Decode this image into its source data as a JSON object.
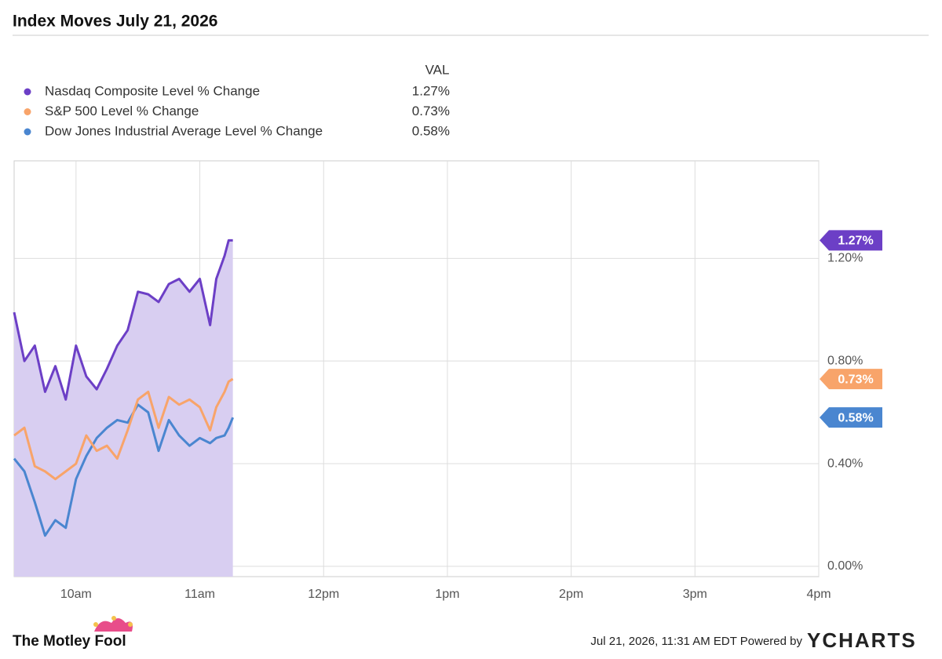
{
  "chart_data": {
    "type": "line",
    "title": "Index Moves July 21, 2026",
    "legend_header": "VAL",
    "x": [
      9.5,
      9.583,
      9.667,
      9.75,
      9.833,
      9.917,
      10,
      10.083,
      10.167,
      10.25,
      10.333,
      10.417,
      10.5,
      10.583,
      10.667,
      10.75,
      10.833,
      10.917,
      11,
      11.083,
      11.133,
      11.2,
      11.233,
      11.267
    ],
    "series": [
      {
        "name": "Nasdaq Composite Level % Change",
        "color": "#6c3fc6",
        "area_color": "#d8cef1",
        "values": [
          0.99,
          0.8,
          0.86,
          0.68,
          0.78,
          0.65,
          0.86,
          0.74,
          0.69,
          0.77,
          0.86,
          0.92,
          1.07,
          1.06,
          1.03,
          1.1,
          1.12,
          1.07,
          1.12,
          0.94,
          1.12,
          1.21,
          1.27,
          1.27
        ],
        "value_labels": [
          null,
          null,
          null,
          null,
          null,
          null,
          null,
          null,
          null,
          null,
          null,
          null,
          null,
          null,
          null,
          null,
          null,
          null,
          null,
          null,
          null,
          null,
          null,
          "1.27%"
        ]
      },
      {
        "name": "S&P 500 Level % Change",
        "color": "#f8a46a",
        "values": [
          0.51,
          0.54,
          0.39,
          0.37,
          0.34,
          0.37,
          0.4,
          0.51,
          0.45,
          0.47,
          0.42,
          0.53,
          0.65,
          0.68,
          0.54,
          0.66,
          0.63,
          0.65,
          0.62,
          0.53,
          0.62,
          0.68,
          0.72,
          0.73
        ],
        "value_labels": [
          null,
          null,
          null,
          null,
          null,
          null,
          null,
          null,
          null,
          null,
          null,
          null,
          null,
          null,
          null,
          null,
          null,
          null,
          null,
          null,
          null,
          null,
          null,
          "0.73%"
        ]
      },
      {
        "name": "Dow Jones Industrial Average Level % Change",
        "color": "#4a86d0",
        "values": [
          0.42,
          0.37,
          0.25,
          0.12,
          0.18,
          0.15,
          0.34,
          0.43,
          0.5,
          0.54,
          0.57,
          0.56,
          0.63,
          0.6,
          0.45,
          0.57,
          0.51,
          0.47,
          0.5,
          0.48,
          0.5,
          0.51,
          0.54,
          0.58
        ],
        "value_labels": [
          null,
          null,
          null,
          null,
          null,
          null,
          null,
          null,
          null,
          null,
          null,
          null,
          null,
          null,
          null,
          null,
          null,
          null,
          null,
          null,
          null,
          null,
          null,
          "0.58%"
        ]
      }
    ],
    "xlim": [
      9.5,
      16
    ],
    "xticks": [
      {
        "value": 10,
        "label": "10am"
      },
      {
        "value": 11,
        "label": "11am"
      },
      {
        "value": 12,
        "label": "12pm"
      },
      {
        "value": 13,
        "label": "1pm"
      },
      {
        "value": 14,
        "label": "2pm"
      },
      {
        "value": 15,
        "label": "3pm"
      },
      {
        "value": 16,
        "label": "4pm"
      }
    ],
    "ylim": [
      -0.04,
      1.58
    ],
    "yticks": [
      {
        "value": 0,
        "label": "0.00%"
      },
      {
        "value": 0.4,
        "label": "0.40%"
      },
      {
        "value": 0.8,
        "label": "0.80%"
      },
      {
        "value": 1.2,
        "label": "1.20%"
      }
    ],
    "grid": true
  },
  "footer": {
    "brand": "The Motley Fool",
    "timestamp": "Jul 21, 2026, 11:31 AM EDT Powered by",
    "provider": "YCHARTS"
  }
}
